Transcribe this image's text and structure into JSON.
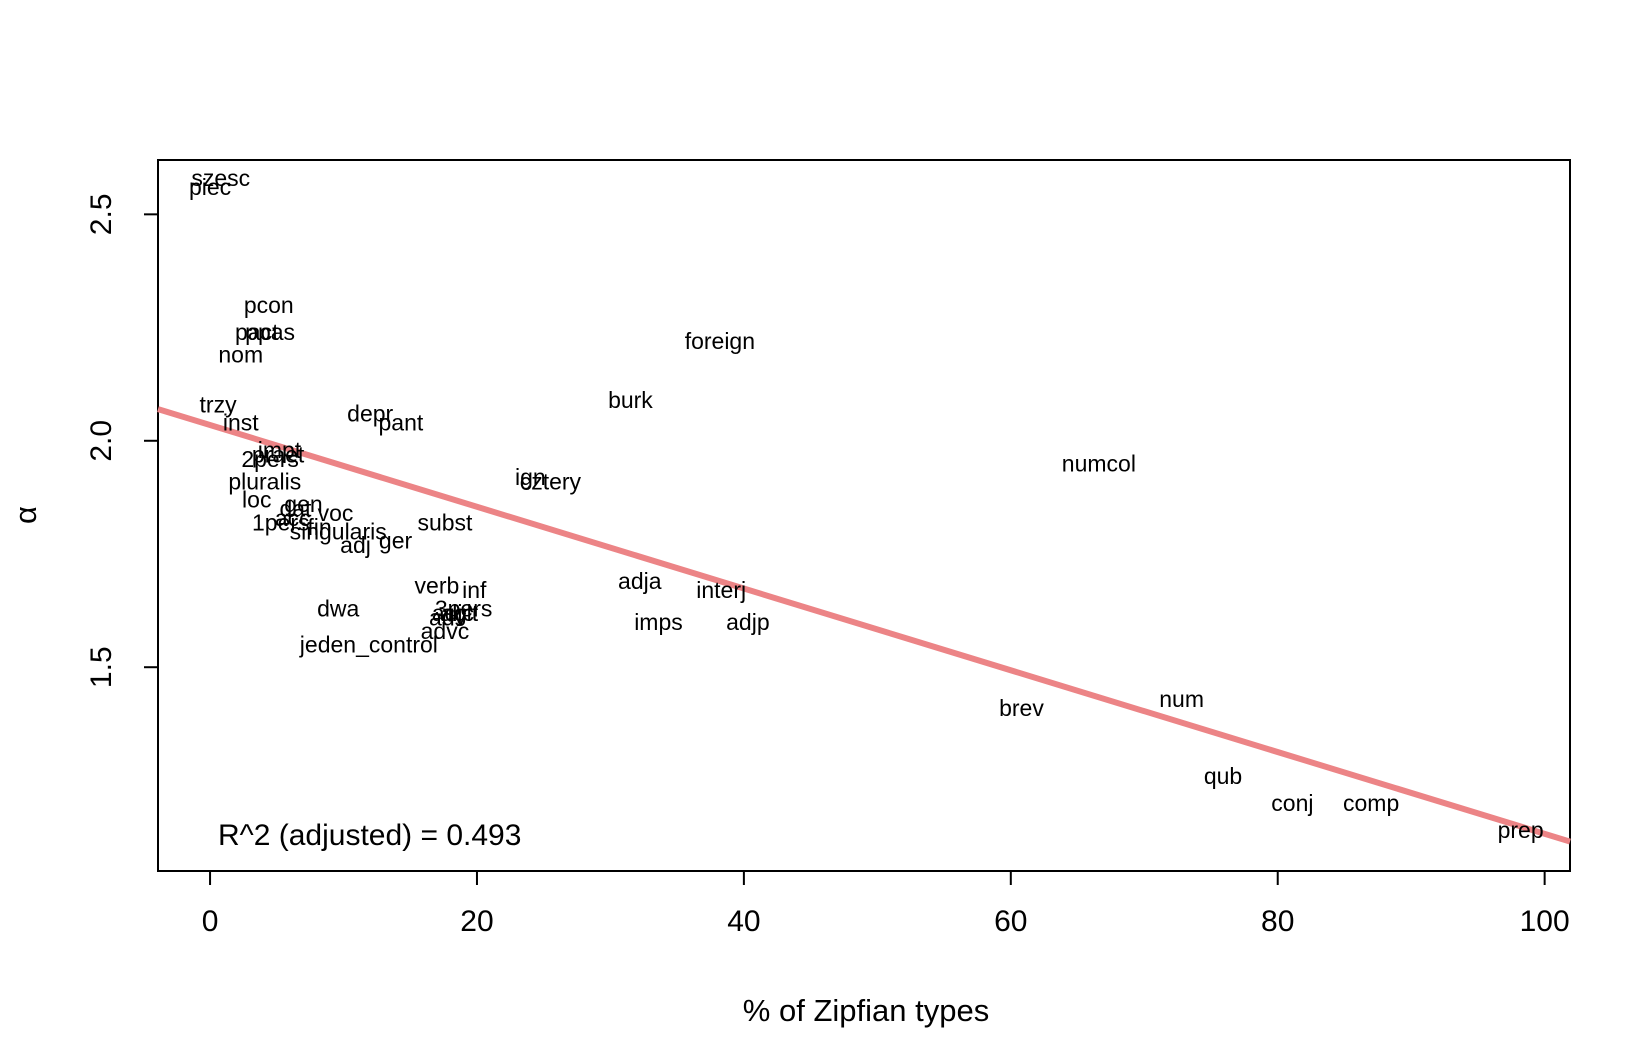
{
  "chart_data": {
    "type": "scatter",
    "xlabel": "% of Zipfian types",
    "ylabel": "α",
    "xlim": [
      -3.9,
      101.9
    ],
    "ylim": [
      1.05,
      2.62
    ],
    "x_ticks": [
      0,
      20,
      40,
      60,
      80,
      100
    ],
    "y_ticks": [
      1.5,
      2.0,
      2.5
    ],
    "grid": false,
    "legend": "none",
    "annotation": "R^2 (adjusted) = 0.493",
    "regression_line": {
      "from": {
        "x": -3.9,
        "y": 2.07
      },
      "to": {
        "x": 101.9,
        "y": 1.115
      },
      "color": "#ec8486"
    },
    "points": [
      {
        "label": "szesc",
        "x": 0.8,
        "y": 2.58
      },
      {
        "label": "piec",
        "x": 0.0,
        "y": 2.56
      },
      {
        "label": "pcon",
        "x": 4.4,
        "y": 2.3
      },
      {
        "label": "pact",
        "x": 3.5,
        "y": 2.24
      },
      {
        "label": "ppas",
        "x": 4.5,
        "y": 2.24
      },
      {
        "label": "nom",
        "x": 2.3,
        "y": 2.19
      },
      {
        "label": "foreign",
        "x": 38.2,
        "y": 2.22
      },
      {
        "label": "trzy",
        "x": 0.6,
        "y": 2.08
      },
      {
        "label": "inst",
        "x": 2.3,
        "y": 2.04
      },
      {
        "label": "depr",
        "x": 12.0,
        "y": 2.06
      },
      {
        "label": "pant",
        "x": 14.3,
        "y": 2.04
      },
      {
        "label": "burk",
        "x": 31.5,
        "y": 2.09
      },
      {
        "label": "impt",
        "x": 5.2,
        "y": 1.98
      },
      {
        "label": "praet",
        "x": 5.1,
        "y": 1.97
      },
      {
        "label": "2pers",
        "x": 4.5,
        "y": 1.96
      },
      {
        "label": "numcol",
        "x": 66.6,
        "y": 1.95
      },
      {
        "label": "pluralis",
        "x": 4.1,
        "y": 1.91
      },
      {
        "label": "ign",
        "x": 24.0,
        "y": 1.92
      },
      {
        "label": "cztery",
        "x": 25.5,
        "y": 1.91
      },
      {
        "label": "loc",
        "x": 3.5,
        "y": 1.87
      },
      {
        "label": "gen",
        "x": 7.0,
        "y": 1.86
      },
      {
        "label": "dat",
        "x": 6.4,
        "y": 1.85
      },
      {
        "label": "voc",
        "x": 9.4,
        "y": 1.84
      },
      {
        "label": "acc",
        "x": 6.2,
        "y": 1.83
      },
      {
        "label": "1pers",
        "x": 5.3,
        "y": 1.82
      },
      {
        "label": "subst",
        "x": 17.6,
        "y": 1.82
      },
      {
        "label": "fin",
        "x": 8.2,
        "y": 1.81
      },
      {
        "label": "singularis",
        "x": 9.6,
        "y": 1.8
      },
      {
        "label": "adj",
        "x": 10.9,
        "y": 1.77
      },
      {
        "label": "ger",
        "x": 13.9,
        "y": 1.78
      },
      {
        "label": "adja",
        "x": 32.2,
        "y": 1.69
      },
      {
        "label": "verb",
        "x": 17.0,
        "y": 1.68
      },
      {
        "label": "inf",
        "x": 19.8,
        "y": 1.67
      },
      {
        "label": "interj",
        "x": 38.3,
        "y": 1.67
      },
      {
        "label": "dwa",
        "x": 9.6,
        "y": 1.63
      },
      {
        "label": "3pers",
        "x": 19.0,
        "y": 1.63
      },
      {
        "label": "aglt",
        "x": 18.7,
        "y": 1.62
      },
      {
        "label": "adv",
        "x": 17.8,
        "y": 1.61
      },
      {
        "label": "adjc",
        "x": 18.2,
        "y": 1.62
      },
      {
        "label": "advc",
        "x": 17.6,
        "y": 1.58
      },
      {
        "label": "imps",
        "x": 33.6,
        "y": 1.6
      },
      {
        "label": "adjp",
        "x": 40.3,
        "y": 1.6
      },
      {
        "label": "jeden_control",
        "x": 11.9,
        "y": 1.55
      },
      {
        "label": "brev",
        "x": 60.8,
        "y": 1.41
      },
      {
        "label": "num",
        "x": 72.8,
        "y": 1.43
      },
      {
        "label": "qub",
        "x": 75.9,
        "y": 1.26
      },
      {
        "label": "conj",
        "x": 81.1,
        "y": 1.2
      },
      {
        "label": "comp",
        "x": 87.0,
        "y": 1.2
      },
      {
        "label": "prep",
        "x": 98.2,
        "y": 1.14
      }
    ]
  }
}
